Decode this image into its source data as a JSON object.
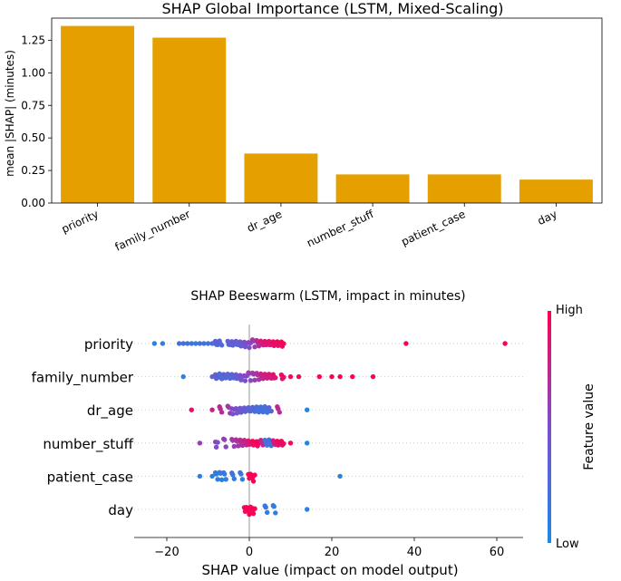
{
  "chart_data": [
    {
      "type": "bar",
      "title": "SHAP Global Importance (LSTM, Mixed-Scaling)",
      "ylabel": "mean |SHAP| (minutes)",
      "xlabel": "",
      "categories": [
        "priority",
        "family_number",
        "dr_age",
        "number_stuff",
        "patient_case",
        "day"
      ],
      "values": [
        1.36,
        1.27,
        0.38,
        0.22,
        0.22,
        0.18
      ],
      "ylim": [
        0,
        1.42
      ],
      "yticks": [
        0.0,
        0.25,
        0.5,
        0.75,
        1.0,
        1.25
      ],
      "ytick_labels": [
        "0.00",
        "0.25",
        "0.50",
        "0.75",
        "1.00",
        "1.25"
      ],
      "bar_color": "#E5A000",
      "grid": false
    },
    {
      "type": "scatter",
      "subtype": "beeswarm",
      "title": "SHAP Beeswarm (LSTM, impact in minutes)",
      "xlabel": "SHAP value (impact on model output)",
      "xlim": [
        -28,
        66
      ],
      "xticks": [
        -20,
        0,
        20,
        40,
        60
      ],
      "xtick_labels": [
        "−20",
        "0",
        "20",
        "40",
        "60"
      ],
      "features": [
        "priority",
        "family_number",
        "dr_age",
        "number_stuff",
        "patient_case",
        "day"
      ],
      "colorbar": {
        "label": "Feature value",
        "high": "High",
        "low": "Low",
        "color_low": "#1E88E5",
        "color_high": "#FF0051"
      },
      "series": [
        {
          "feature": "priority",
          "points": [
            [
              -23,
              0.05
            ],
            [
              -21,
              0.1
            ],
            [
              -17,
              0.2
            ],
            [
              -16,
              0.25
            ],
            [
              -15,
              0.2
            ],
            [
              -14,
              0.15
            ],
            [
              -13,
              0.1
            ],
            [
              -12,
              0.2
            ],
            [
              -11,
              0.15
            ],
            [
              -10,
              0.25
            ],
            [
              -9,
              0.2
            ],
            [
              -8,
              0.3
            ],
            [
              -7,
              0.25
            ],
            [
              -5,
              0.3
            ],
            [
              -4,
              0.35
            ],
            [
              -3,
              0.3
            ],
            [
              -2,
              0.4
            ],
            [
              -1,
              0.45
            ],
            [
              0,
              0.5
            ],
            [
              1,
              0.6
            ],
            [
              2,
              0.7
            ],
            [
              3,
              0.8
            ],
            [
              4,
              0.85
            ],
            [
              5,
              0.85
            ],
            [
              6,
              0.9
            ],
            [
              7,
              0.9
            ],
            [
              8,
              0.95
            ],
            [
              38,
              1.0
            ],
            [
              62,
              1.0
            ]
          ]
        },
        {
          "feature": "family_number",
          "points": [
            [
              -16,
              0.1
            ],
            [
              -9,
              0.3
            ],
            [
              -8,
              0.35
            ],
            [
              -7,
              0.2
            ],
            [
              -6,
              0.3
            ],
            [
              -5,
              0.25
            ],
            [
              -4,
              0.3
            ],
            [
              -3,
              0.35
            ],
            [
              -2,
              0.45
            ],
            [
              -1,
              0.5
            ],
            [
              0,
              0.55
            ],
            [
              1,
              0.6
            ],
            [
              2,
              0.65
            ],
            [
              3,
              0.75
            ],
            [
              4,
              0.8
            ],
            [
              5,
              0.8
            ],
            [
              6,
              0.85
            ],
            [
              8,
              0.9
            ],
            [
              10,
              0.95
            ],
            [
              12,
              0.95
            ],
            [
              17,
              1.0
            ],
            [
              20,
              1.0
            ],
            [
              22,
              1.0
            ],
            [
              25,
              1.0
            ],
            [
              30,
              1.0
            ]
          ]
        },
        {
          "feature": "dr_age",
          "points": [
            [
              -14,
              0.9
            ],
            [
              -9,
              0.8
            ],
            [
              -7,
              0.7
            ],
            [
              -5,
              0.6
            ],
            [
              -4,
              0.5
            ],
            [
              -3,
              0.45
            ],
            [
              -2,
              0.4
            ],
            [
              -1,
              0.35
            ],
            [
              0,
              0.3
            ],
            [
              1,
              0.25
            ],
            [
              2,
              0.2
            ],
            [
              3,
              0.2
            ],
            [
              4,
              0.15
            ],
            [
              5,
              0.3
            ],
            [
              7,
              0.7
            ],
            [
              14,
              0.05
            ]
          ]
        },
        {
          "feature": "number_stuff",
          "points": [
            [
              -12,
              0.6
            ],
            [
              -8,
              0.5
            ],
            [
              -6,
              0.55
            ],
            [
              -4,
              0.6
            ],
            [
              -3,
              0.65
            ],
            [
              -2,
              0.7
            ],
            [
              -1,
              0.75
            ],
            [
              0,
              0.85
            ],
            [
              1,
              0.9
            ],
            [
              2,
              0.95
            ],
            [
              3,
              0.75
            ],
            [
              4,
              0.2
            ],
            [
              5,
              0.15
            ],
            [
              6,
              0.8
            ],
            [
              7,
              0.9
            ],
            [
              8,
              0.9
            ],
            [
              10,
              0.95
            ],
            [
              14,
              0.05
            ]
          ]
        },
        {
          "feature": "patient_case",
          "points": [
            [
              -12,
              0.1
            ],
            [
              -9,
              0.05
            ],
            [
              -8,
              0.1
            ],
            [
              -7,
              0.05
            ],
            [
              -6,
              0.1
            ],
            [
              -4,
              0.15
            ],
            [
              -2,
              0.1
            ],
            [
              0,
              0.9
            ],
            [
              0.5,
              0.95
            ],
            [
              1,
              1.0
            ],
            [
              22,
              0.05
            ]
          ]
        },
        {
          "feature": "day",
          "points": [
            [
              -1,
              0.9
            ],
            [
              -0.5,
              0.95
            ],
            [
              0,
              1.0
            ],
            [
              0.5,
              0.9
            ],
            [
              1,
              0.95
            ],
            [
              4,
              0.1
            ],
            [
              6,
              0.05
            ],
            [
              14,
              0.05
            ]
          ]
        }
      ],
      "grid": false
    }
  ]
}
